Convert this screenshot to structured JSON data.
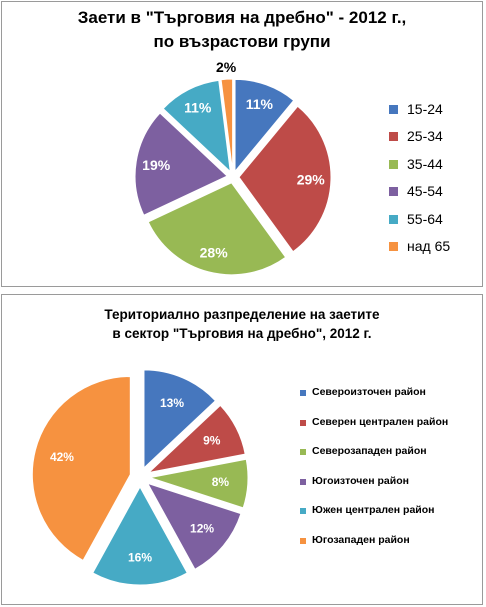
{
  "chart_data": [
    {
      "type": "pie",
      "title": "Заети в \"Търговия на дребно\" - 2012 г.,",
      "subtitle": "по възрастови групи",
      "categories": [
        "15-24",
        "25-34",
        "35-44",
        "45-54",
        "55-64",
        "над 65"
      ],
      "values": [
        11,
        29,
        28,
        19,
        11,
        2
      ],
      "value_labels": [
        "11%",
        "29%",
        "28%",
        "19%",
        "11%",
        "2%"
      ],
      "colors": [
        "#4677be",
        "#be4b48",
        "#98b954",
        "#7d60a0",
        "#46aac5",
        "#f69240"
      ],
      "legend": "right",
      "exploded": true
    },
    {
      "type": "pie",
      "title": "Териториално разпределение на заетите",
      "subtitle": "в сектор \"Търговия на дребно\", 2012 г.",
      "categories": [
        "Североизточен район",
        "Северен централен район",
        "Северозападен район",
        "Югоизточен район",
        "Южен централен район",
        "Югозападен район"
      ],
      "values": [
        13,
        9,
        8,
        12,
        16,
        42
      ],
      "value_labels": [
        "13%",
        "9%",
        "8%",
        "12%",
        "16%",
        "42%"
      ],
      "colors": [
        "#4677be",
        "#be4b48",
        "#98b954",
        "#7d60a0",
        "#46aac5",
        "#f69240"
      ],
      "legend": "right",
      "exploded": true
    }
  ]
}
